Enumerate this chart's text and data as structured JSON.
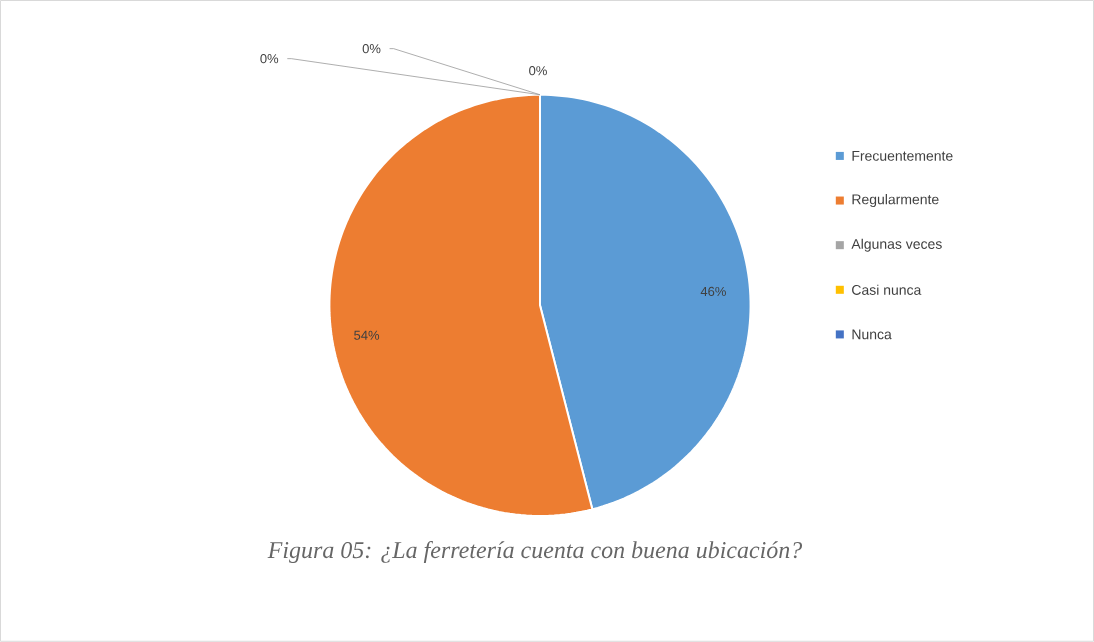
{
  "chart_data": {
    "type": "pie",
    "categories": [
      "Frecuentemente",
      "Regularmente",
      "Algunas veces",
      "Casi nunca",
      "Nunca"
    ],
    "values": [
      46,
      54,
      0,
      0,
      0
    ],
    "value_labels": [
      "46%",
      "54%",
      "0%",
      "0%",
      "0%"
    ],
    "colors": [
      "#5b9bd5",
      "#ed7d31",
      "#a5a5a5",
      "#ffc000",
      "#4472c4"
    ],
    "legend": "right",
    "annotations": [
      "Figura 05: ¿La ferretería cuenta con buena ubicación?"
    ]
  }
}
